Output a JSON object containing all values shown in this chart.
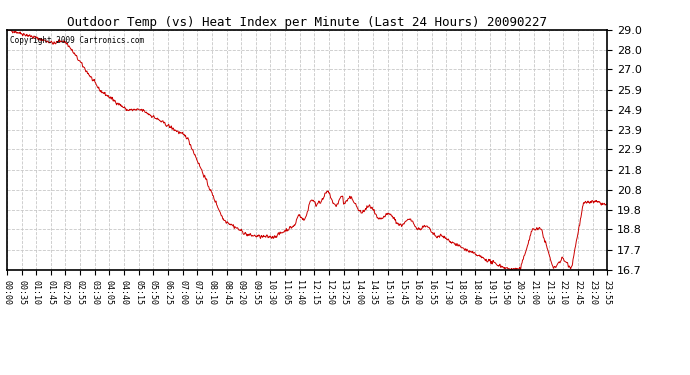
{
  "title": "Outdoor Temp (vs) Heat Index per Minute (Last 24 Hours) 20090227",
  "copyright_text": "Copyright 2009 Cartronics.com",
  "line_color": "#cc0000",
  "background_color": "#ffffff",
  "grid_color": "#c8c8c8",
  "grid_style": "--",
  "ylim": [
    16.7,
    29.0
  ],
  "yticks": [
    16.7,
    17.7,
    18.8,
    19.8,
    20.8,
    21.8,
    22.9,
    23.9,
    24.9,
    25.9,
    27.0,
    28.0,
    29.0
  ],
  "xtick_labels": [
    "00:00",
    "00:35",
    "01:10",
    "01:45",
    "02:20",
    "02:55",
    "03:30",
    "04:05",
    "04:40",
    "05:15",
    "05:50",
    "06:25",
    "07:00",
    "07:35",
    "08:10",
    "08:45",
    "09:20",
    "09:55",
    "10:30",
    "11:05",
    "11:40",
    "12:15",
    "12:50",
    "13:25",
    "14:00",
    "14:35",
    "15:10",
    "15:45",
    "16:20",
    "16:55",
    "17:30",
    "18:05",
    "18:40",
    "19:15",
    "19:50",
    "20:25",
    "21:00",
    "21:35",
    "22:10",
    "22:45",
    "23:20",
    "23:55"
  ],
  "figwidth": 6.9,
  "figheight": 3.75,
  "dpi": 100
}
